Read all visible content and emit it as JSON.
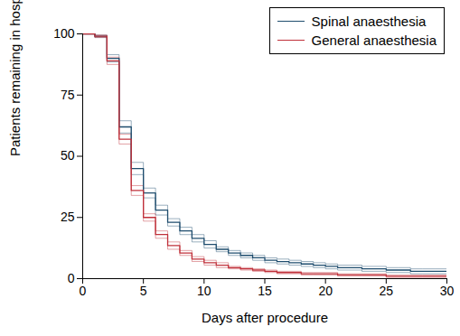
{
  "chart_data": {
    "type": "line",
    "x_label": "Days after procedure",
    "y_label": "Patients remaining in hospital (%)",
    "x": [
      0,
      1,
      2,
      3,
      4,
      5,
      6,
      7,
      8,
      9,
      10,
      11,
      12,
      13,
      14,
      15,
      16,
      17,
      18,
      19,
      20,
      21,
      22,
      23,
      24,
      25,
      26,
      27,
      28,
      29,
      30
    ],
    "series": [
      {
        "name": "Spinal anaesthesia",
        "color": "#1f4d6e",
        "values": [
          100,
          99,
          90,
          62,
          45,
          35,
          28,
          23,
          19.5,
          16.5,
          14,
          12,
          10.5,
          9.5,
          8.5,
          7.5,
          7,
          6.5,
          6,
          5.5,
          5,
          4.5,
          4.5,
          4,
          4,
          3.5,
          3.5,
          3,
          3,
          3,
          3
        ],
        "lower": [
          100,
          98.5,
          88.5,
          59.5,
          42.5,
          33,
          26,
          21.5,
          18,
          15,
          12.5,
          11,
          9.5,
          8.5,
          7.5,
          6.5,
          6,
          5.5,
          5,
          4.5,
          4,
          3.5,
          3.5,
          3,
          3,
          2.5,
          2.5,
          2,
          2,
          2,
          2
        ],
        "upper": [
          100,
          99.5,
          91.5,
          64.5,
          47.5,
          37,
          30,
          24.5,
          21,
          18,
          15.5,
          13,
          11.5,
          10.5,
          9.5,
          8.5,
          8,
          7.5,
          7,
          6.5,
          6,
          5.5,
          5.5,
          5,
          5,
          4.5,
          4.5,
          4,
          4,
          4,
          4
        ]
      },
      {
        "name": "General anaesthesia",
        "color": "#c0303a",
        "values": [
          100,
          99,
          89,
          57,
          36,
          25,
          18,
          13.5,
          10.5,
          8,
          6.5,
          5.5,
          4.5,
          4,
          3.5,
          3,
          2.5,
          2.5,
          2,
          2,
          2,
          1.5,
          1.5,
          1.5,
          1.5,
          1,
          1,
          1,
          1,
          1,
          1
        ],
        "lower": [
          100,
          98.5,
          87.5,
          55,
          34,
          23.5,
          16.5,
          12,
          9.5,
          7,
          5.5,
          4.5,
          4,
          3.5,
          3,
          2.5,
          2,
          2,
          1.5,
          1.5,
          1.5,
          1,
          1,
          1,
          1,
          0.5,
          0.5,
          0.5,
          0.5,
          0.5,
          0.5
        ],
        "upper": [
          100,
          99.5,
          90.5,
          59,
          38,
          26.5,
          19.5,
          15,
          11.5,
          9,
          7.5,
          6.5,
          5,
          4.5,
          4,
          3.5,
          3,
          3,
          2.5,
          2.5,
          2.5,
          2,
          2,
          2,
          2,
          1.5,
          1.5,
          1.5,
          1.5,
          1.5,
          1.5
        ]
      }
    ],
    "xlim": [
      0,
      30
    ],
    "xticks": [
      0,
      5,
      10,
      15,
      20,
      25,
      30
    ],
    "ylim": [
      0,
      100
    ],
    "yticks": [
      0,
      25,
      50,
      75,
      100
    ],
    "grid": false,
    "legend": "upper right",
    "line_style": "step"
  }
}
